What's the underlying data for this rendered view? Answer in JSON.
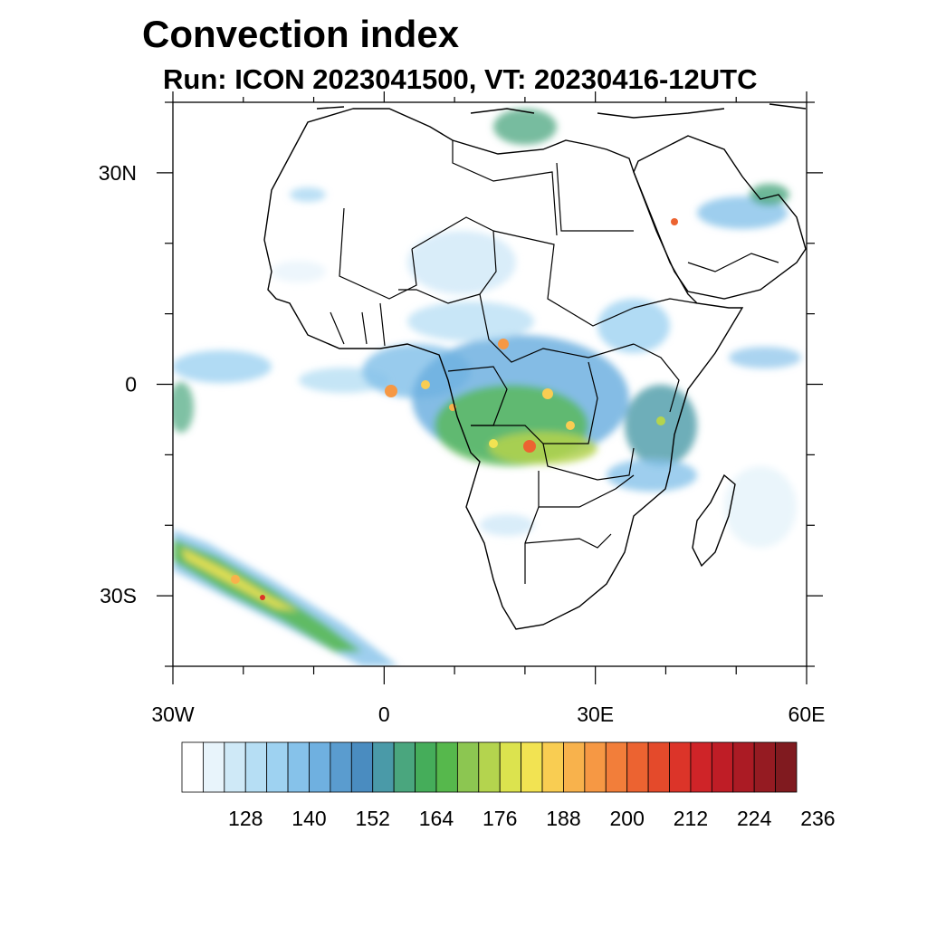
{
  "title": "Convection index",
  "subtitle": "Run: ICON 2023041500,  VT: 20230416-12UTC",
  "map": {
    "lon_range": [
      -30,
      60
    ],
    "lat_range": [
      -40,
      40
    ],
    "lat_labels": [
      {
        "lat": 30,
        "text": "30N"
      },
      {
        "lat": 0,
        "text": "0"
      },
      {
        "lat": -30,
        "text": "30S"
      }
    ],
    "lon_labels": [
      {
        "lon": -30,
        "text": "30W"
      },
      {
        "lon": 0,
        "text": "0"
      },
      {
        "lon": 30,
        "text": "30E"
      },
      {
        "lon": 60,
        "text": "60E"
      }
    ],
    "minor_lon_step": 10,
    "minor_lat_step": 10
  },
  "colorbar": {
    "colors": [
      "#ffffff",
      "#e8f4fb",
      "#cfe9f7",
      "#b6def4",
      "#9ed2f1",
      "#86c2ea",
      "#6fb0e0",
      "#5a9ccf",
      "#4a8cc0",
      "#4a9aa8",
      "#4aa67e",
      "#45ad5a",
      "#56b84c",
      "#8cc651",
      "#b4d44e",
      "#dce34e",
      "#f2e352",
      "#f9cd52",
      "#f8b24c",
      "#f69844",
      "#f27e3a",
      "#ec6331",
      "#e44a2b",
      "#dc3429",
      "#cf2428",
      "#bf1d26",
      "#ab1b24",
      "#951b22",
      "#801a1f"
    ],
    "labels": [
      "128",
      "140",
      "152",
      "164",
      "176",
      "188",
      "200",
      "212",
      "224",
      "236"
    ]
  }
}
